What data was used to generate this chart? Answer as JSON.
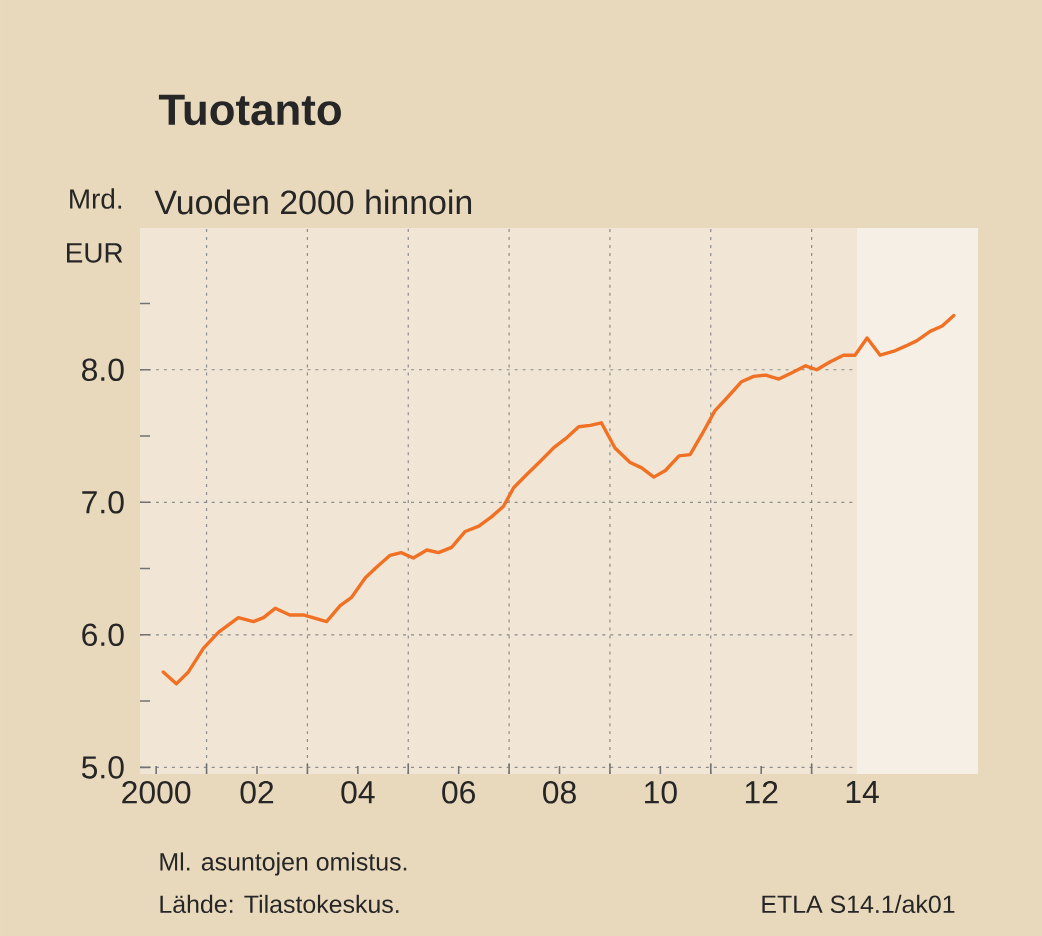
{
  "chart_data": {
    "type": "line",
    "title": "Tuotanto",
    "subtitle": "Vuoden 2000 hinnoin",
    "ylabel": "Mrd. EUR",
    "annotations": [
      "Ml. asuntojen omistus.",
      "Lähde:   Tilastokeskus.",
      "ETLA S14.1/ak01"
    ],
    "x": [
      2000.14,
      2000.4,
      2000.64,
      2000.94,
      2001.24,
      2001.63,
      2001.93,
      2002.13,
      2002.36,
      2002.65,
      2002.92,
      2003.38,
      2003.65,
      2003.87,
      2004.15,
      2004.37,
      2004.64,
      2004.86,
      2005.1,
      2005.37,
      2005.6,
      2005.86,
      2006.13,
      2006.4,
      2006.65,
      2006.89,
      2007.09,
      2007.35,
      2007.62,
      2007.88,
      2008.12,
      2008.38,
      2008.61,
      2008.83,
      2009.1,
      2009.4,
      2009.63,
      2009.87,
      2010.1,
      2010.37,
      2010.59,
      2010.82,
      2011.08,
      2011.35,
      2011.61,
      2011.85,
      2012.09,
      2012.35,
      2012.62,
      2012.88,
      2013.1,
      2013.37,
      2013.63,
      2013.86,
      2014.1,
      2014.36,
      2014.63,
      2014.87,
      2015.09,
      2015.35,
      2015.59,
      2015.82
    ],
    "values": [
      5.72,
      5.63,
      5.72,
      5.9,
      6.02,
      6.13,
      6.1,
      6.13,
      6.2,
      6.15,
      6.15,
      6.1,
      6.22,
      6.28,
      6.43,
      6.51,
      6.6,
      6.62,
      6.58,
      6.64,
      6.62,
      6.66,
      6.78,
      6.82,
      6.89,
      6.97,
      7.11,
      7.21,
      7.31,
      7.41,
      7.48,
      7.57,
      7.58,
      7.6,
      7.41,
      7.3,
      7.26,
      7.19,
      7.24,
      7.35,
      7.36,
      7.51,
      7.69,
      7.8,
      7.91,
      7.95,
      7.96,
      7.93,
      7.98,
      8.03,
      8.0,
      8.06,
      8.11,
      8.11,
      8.24,
      8.11,
      8.14,
      8.18,
      8.22,
      8.29,
      8.33,
      8.41
    ],
    "color": "#f07024",
    "xlim": [
      1999.68,
      2016.3
    ],
    "ylim": [
      4.95,
      9.07
    ],
    "xticks": [
      {
        "value": 2000,
        "label": "2000"
      },
      {
        "value": 2002,
        "label": "02"
      },
      {
        "value": 2004,
        "label": "04"
      },
      {
        "value": 2006,
        "label": "06"
      },
      {
        "value": 2008,
        "label": "08"
      },
      {
        "value": 2010,
        "label": "10"
      },
      {
        "value": 2012,
        "label": "12"
      },
      {
        "value": 2014,
        "label": "14"
      },
      {
        "value": 2001,
        "label": null
      },
      {
        "value": 2003,
        "label": null
      },
      {
        "value": 2005,
        "label": null
      },
      {
        "value": 2007,
        "label": null
      },
      {
        "value": 2009,
        "label": null
      },
      {
        "value": 2011,
        "label": null
      },
      {
        "value": 2013,
        "label": null
      },
      {
        "value": 2015,
        "label": null
      }
    ],
    "yticks": [
      {
        "value": 5,
        "label": "5.0"
      },
      {
        "value": 6,
        "label": "6.0"
      },
      {
        "value": 7,
        "label": "7.0"
      },
      {
        "value": 8,
        "label": "8.0"
      },
      {
        "value": 5.5,
        "label": null
      },
      {
        "value": 6.5,
        "label": null
      },
      {
        "value": 7.5,
        "label": null
      },
      {
        "value": 8.5,
        "label": null
      }
    ],
    "bands": [
      {
        "axis": "x",
        "from": 2013.9,
        "to": 2016.3,
        "color": "#f6efe6"
      }
    ],
    "grid": true
  }
}
